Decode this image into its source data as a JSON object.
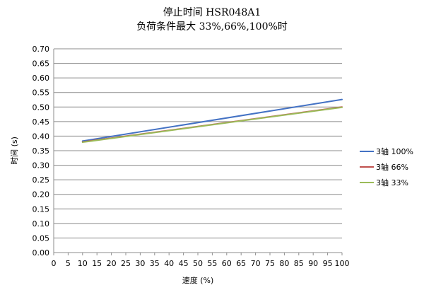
{
  "chart_data": {
    "type": "line",
    "title": "停止时间 HSR048A1",
    "subtitle": "负荷条件最大 33%,66%,100%时",
    "xlabel": "速度 (%)",
    "ylabel": "时间 (s)",
    "xlim": [
      0,
      100
    ],
    "ylim": [
      0,
      0.7
    ],
    "x_ticks": [
      0,
      5,
      10,
      15,
      20,
      25,
      30,
      35,
      40,
      45,
      50,
      55,
      60,
      65,
      70,
      75,
      80,
      85,
      90,
      95,
      100
    ],
    "y_ticks": [
      0.0,
      0.05,
      0.1,
      0.15,
      0.2,
      0.25,
      0.3,
      0.35,
      0.4,
      0.45,
      0.5,
      0.55,
      0.6,
      0.65,
      0.7
    ],
    "y_tick_labels": [
      "0.00",
      "0.05",
      "0.10",
      "0.15",
      "0.20",
      "0.25",
      "0.30",
      "0.35",
      "0.40",
      "0.45",
      "0.50",
      "0.55",
      "0.60",
      "0.65",
      "0.70"
    ],
    "grid": "horizontal",
    "legend_position": "right",
    "series": [
      {
        "name": "3轴  100%",
        "color": "#4472c4",
        "x": [
          10,
          100
        ],
        "y": [
          0.383,
          0.526
        ]
      },
      {
        "name": "3轴  66%",
        "color": "#c0504d",
        "x": [
          10,
          100
        ],
        "y": [
          0.38,
          0.5
        ]
      },
      {
        "name": "3轴  33%",
        "color": "#9bbb59",
        "x": [
          10,
          100
        ],
        "y": [
          0.379,
          0.499
        ]
      }
    ]
  }
}
